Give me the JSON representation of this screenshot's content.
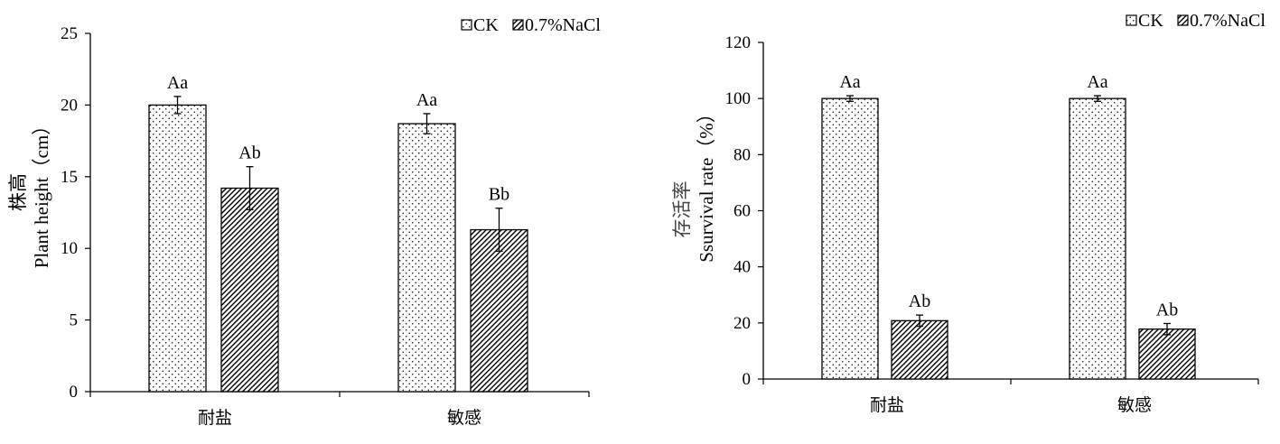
{
  "colors": {
    "axis": "#000000",
    "bar_fill": "#ffffff",
    "pattern": "#000000"
  },
  "chart_data": [
    {
      "type": "bar",
      "ylabel_cn": "株高",
      "ylabel": "Plant height（cm）",
      "categories": [
        "耐盐",
        "敏感"
      ],
      "ylim": [
        0,
        25
      ],
      "yticks": [
        0,
        5,
        10,
        15,
        20,
        25
      ],
      "grid": false,
      "legend_position": "top-right",
      "series": [
        {
          "name": "CK",
          "pattern": "dots",
          "values": [
            20.0,
            18.7
          ],
          "errors": [
            0.6,
            0.7
          ],
          "labels": [
            "Aa",
            "Aa"
          ]
        },
        {
          "name": "0.7%NaCl",
          "pattern": "hatch",
          "values": [
            14.2,
            11.3
          ],
          "errors": [
            1.5,
            1.5
          ],
          "labels": [
            "Ab",
            "Bb"
          ]
        }
      ]
    },
    {
      "type": "bar",
      "ylabel_cn": "存活率",
      "ylabel": "Ssurvival rate（%）",
      "categories": [
        "耐盐",
        "敏感"
      ],
      "ylim": [
        0,
        120
      ],
      "yticks": [
        0,
        20,
        40,
        60,
        80,
        100,
        120
      ],
      "grid": false,
      "legend_position": "top-right",
      "series": [
        {
          "name": "CK",
          "pattern": "dots",
          "values": [
            100,
            100
          ],
          "errors": [
            1,
            1
          ],
          "labels": [
            "Aa",
            "Aa"
          ]
        },
        {
          "name": "0.7%NaCl",
          "pattern": "hatch",
          "values": [
            20.8,
            17.8
          ],
          "errors": [
            2,
            2
          ],
          "labels": [
            "Ab",
            "Ab"
          ]
        }
      ]
    }
  ]
}
